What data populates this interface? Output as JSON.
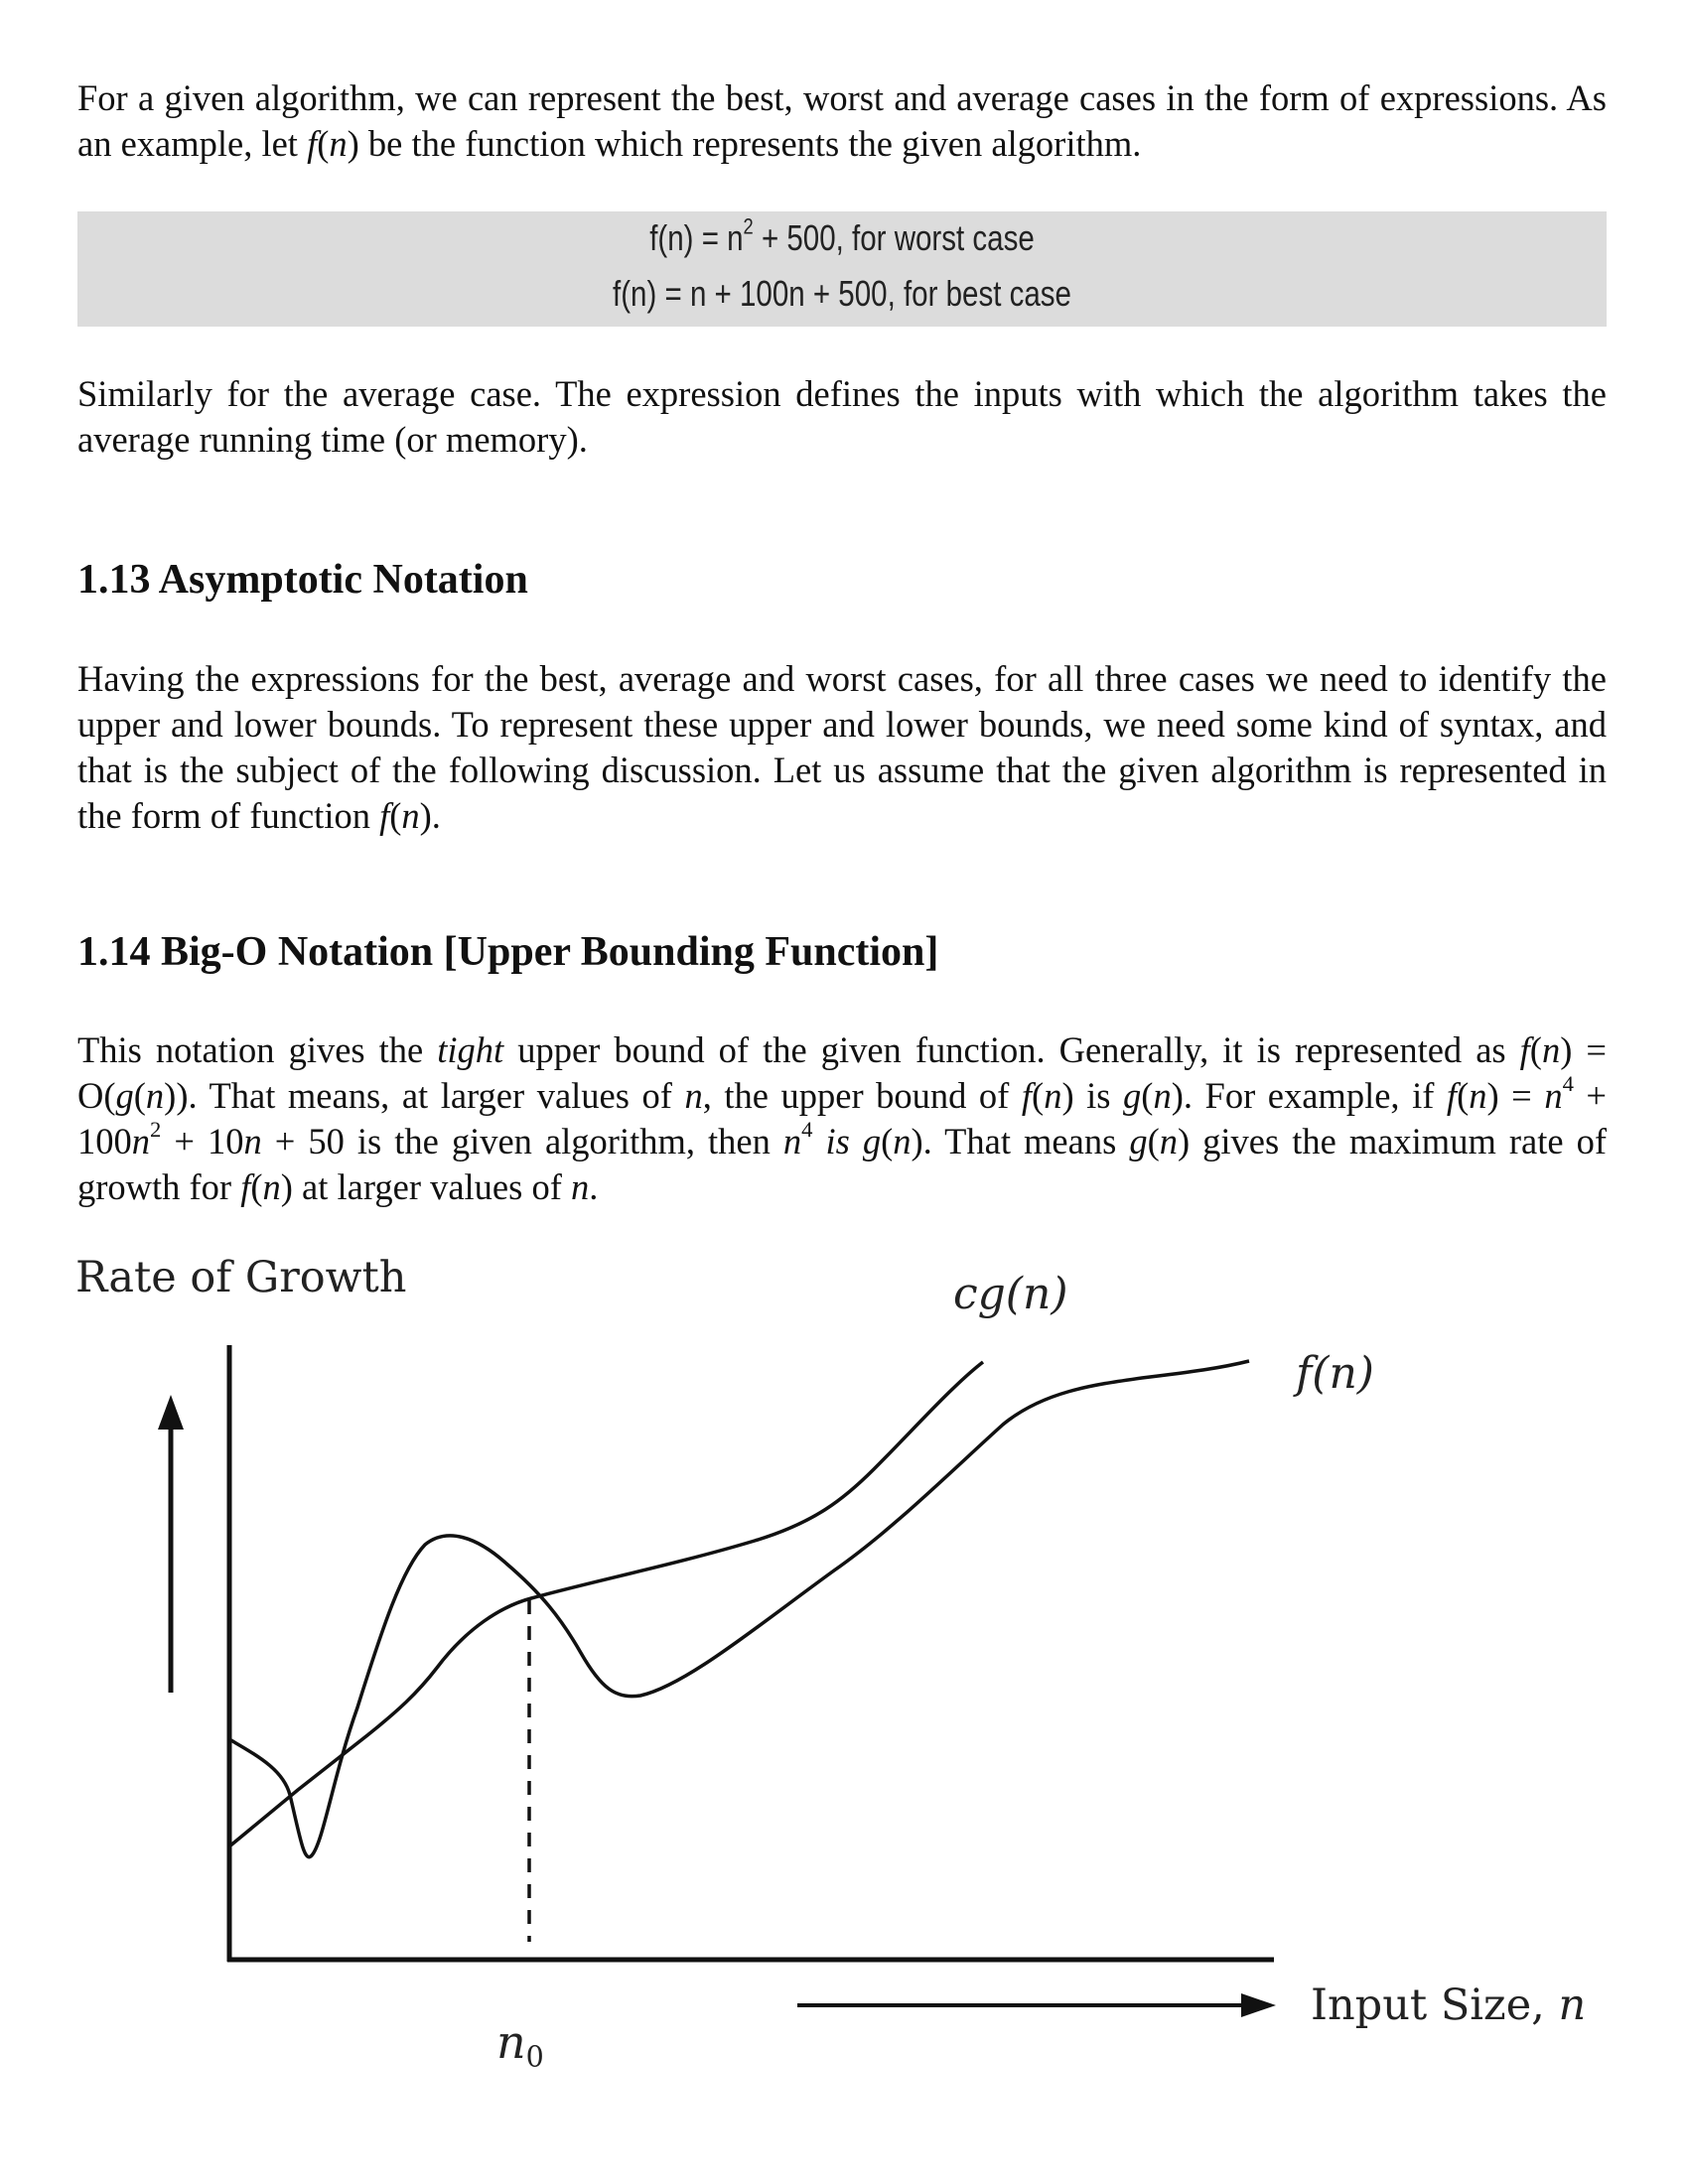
{
  "para1": {
    "text_a": "For a given algorithm, we can represent the best, worst and average cases in the form of expressions. As an example, let ",
    "f": "f",
    "text_b": "(",
    "n": "n",
    "text_c": ") be the function which represents the given algorithm."
  },
  "formulas": {
    "worst": {
      "lhs": "f(n) = n",
      "exp": "2",
      "rhs": " + 500, for worst case"
    },
    "best": {
      "text": "f(n) = n  + 100n + 500, for best case"
    }
  },
  "para2": "Similarly for the average case. The expression defines the inputs with which the algorithm takes the average running time (or memory).",
  "section_113": {
    "heading": "1.13 Asymptotic Notation",
    "body_a": "Having the expressions for the best, average and worst cases, for all three cases we need to identify the upper and lower bounds. To represent these upper and lower bounds, we need some kind of syntax, and that is the subject of the following discussion. Let us assume that the given algorithm is represented in the form of function ",
    "f": "f",
    "body_b": "(",
    "n": "n",
    "body_c": ")."
  },
  "section_114": {
    "heading": "1.14 Big-O Notation [Upper Bounding Function]",
    "body": {
      "t1": "This notation gives the ",
      "tight": "tight",
      "t2": " upper bound of the given function. Generally, it is represented as ",
      "f1": "f",
      "t3": "(",
      "n1": "n",
      "t4": ") = O(",
      "g1": "g",
      "t5": "(",
      "n2": "n",
      "t6": ")). That means, at larger values of ",
      "n3": "n",
      "t7": ", the upper bound of ",
      "f2": "f",
      "t8": "(",
      "n4": "n",
      "t9": ") is ",
      "g2": "g",
      "t10": "(",
      "n5": "n",
      "t11": "). For example, if ",
      "f3": "f",
      "t12": "(",
      "n6": "n",
      "t13": ") = ",
      "n7": "n",
      "e1": "4",
      "t14": " + 100",
      "n8": "n",
      "e2": "2",
      "t15": " + 10",
      "n9": "n",
      "t16": " + 50 is the given algorithm, then ",
      "n10": "n",
      "e3": "4",
      "is": " is ",
      "g3": "g",
      "t17": "(",
      "n11": "n",
      "t18": "). That means ",
      "g4": "g",
      "t19": "(",
      "n12": "n",
      "t20": ") gives the maximum rate of growth for ",
      "f4": "f",
      "t21": "(",
      "n13": "n",
      "t22": ") at larger values of ",
      "n14": "n",
      "t23": "."
    }
  },
  "figure": {
    "y_label": "Rate of Growth",
    "x_label_text": "Input Size, ",
    "x_label_var": "n",
    "curve_cg_label": "cg(n)",
    "curve_f_label": "f(n)",
    "n0_base": "n",
    "n0_sub": "0"
  }
}
